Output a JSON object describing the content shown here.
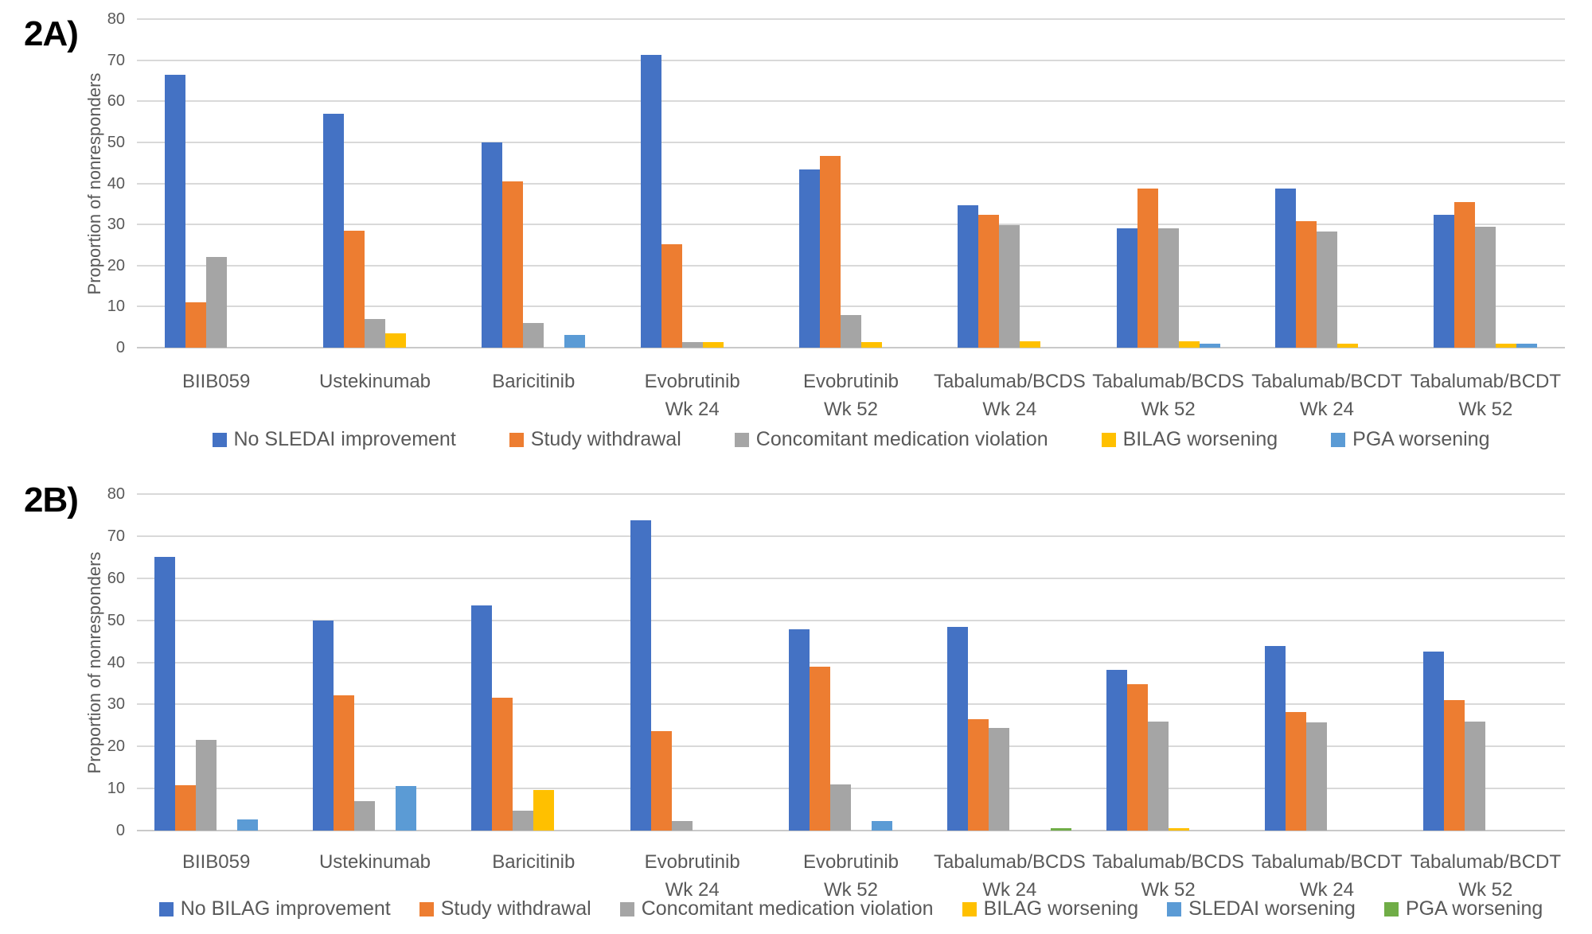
{
  "style": {
    "background": "#FFFFFF",
    "text_color": "#595959",
    "panel_label_color": "#000000",
    "gridline_color": "#D9D9D9",
    "axis_line_color": "#C9C9C9",
    "series_colors": {
      "blue": "#4472C4",
      "orange": "#ED7D31",
      "gray": "#A5A5A5",
      "yellow": "#FFC000",
      "light_blue": "#5B9BD5",
      "green": "#70AD47"
    }
  },
  "chart_data": [
    {
      "panel_label": "2A)",
      "type": "bar",
      "ylabel": "Proportion of nonresponders",
      "ylim": [
        0,
        80
      ],
      "ytick_step": 10,
      "grid": true,
      "legend_position": "bottom",
      "categories": [
        {
          "line1": "BIIB059",
          "line2": ""
        },
        {
          "line1": "Ustekinumab",
          "line2": ""
        },
        {
          "line1": "Baricitinib",
          "line2": ""
        },
        {
          "line1": "Evobrutinib",
          "line2": "Wk 24"
        },
        {
          "line1": "Evobrutinib",
          "line2": "Wk 52"
        },
        {
          "line1": "Tabalumab/BCDS",
          "line2": "Wk 24"
        },
        {
          "line1": "Tabalumab/BCDS",
          "line2": "Wk 52"
        },
        {
          "line1": "Tabalumab/BCDT",
          "line2": "Wk 24"
        },
        {
          "line1": "Tabalumab/BCDT",
          "line2": "Wk 52"
        }
      ],
      "series": [
        {
          "name": "No SLEDAI improvement",
          "color": "#4472C4",
          "values": [
            66.5,
            57.0,
            50.0,
            71.3,
            43.3,
            34.6,
            29.0,
            38.8,
            32.3
          ]
        },
        {
          "name": "Study withdrawal",
          "color": "#ED7D31",
          "values": [
            11.0,
            28.4,
            40.5,
            25.2,
            46.6,
            32.4,
            38.8,
            30.8,
            35.5
          ]
        },
        {
          "name": "Concomitant medication violation",
          "color": "#A5A5A5",
          "values": [
            22.0,
            7.0,
            6.1,
            1.4,
            7.9,
            29.8,
            29.0,
            28.2,
            29.5
          ]
        },
        {
          "name": "BILAG worsening",
          "color": "#FFC000",
          "values": [
            0,
            3.5,
            0,
            1.4,
            1.4,
            1.5,
            1.5,
            0.9,
            0.9
          ]
        },
        {
          "name": "PGA worsening",
          "color": "#5B9BD5",
          "values": [
            0,
            0,
            3.1,
            0,
            0,
            0,
            0.9,
            0,
            0.9
          ]
        }
      ]
    },
    {
      "panel_label": "2B)",
      "type": "bar",
      "ylabel": "Proportion of nonresponders",
      "ylim": [
        0,
        80
      ],
      "ytick_step": 10,
      "grid": true,
      "legend_position": "bottom",
      "categories": [
        {
          "line1": "BIIB059",
          "line2": ""
        },
        {
          "line1": "Ustekinumab",
          "line2": ""
        },
        {
          "line1": "Baricitinib",
          "line2": ""
        },
        {
          "line1": "Evobrutinib",
          "line2": "Wk 24"
        },
        {
          "line1": "Evobrutinib",
          "line2": "Wk 52"
        },
        {
          "line1": "Tabalumab/BCDS",
          "line2": "Wk 24"
        },
        {
          "line1": "Tabalumab/BCDS",
          "line2": "Wk 52"
        },
        {
          "line1": "Tabalumab/BCDT",
          "line2": "Wk 24"
        },
        {
          "line1": "Tabalumab/BCDT",
          "line2": "Wk 52"
        }
      ],
      "series": [
        {
          "name": "No BILAG improvement",
          "color": "#4472C4",
          "values": [
            65.0,
            50.0,
            53.5,
            73.8,
            47.8,
            48.5,
            38.2,
            43.8,
            42.5
          ]
        },
        {
          "name": "Study withdrawal",
          "color": "#ED7D31",
          "values": [
            10.8,
            32.2,
            31.6,
            23.7,
            39.0,
            26.5,
            34.8,
            28.2,
            31.0
          ]
        },
        {
          "name": "Concomitant medication violation",
          "color": "#A5A5A5",
          "values": [
            21.5,
            7.0,
            4.8,
            2.2,
            11.0,
            24.4,
            26.0,
            25.8,
            26.0
          ]
        },
        {
          "name": "BILAG worsening",
          "color": "#FFC000",
          "values": [
            0,
            0,
            9.7,
            0,
            0,
            0,
            0.6,
            0,
            0
          ]
        },
        {
          "name": "SLEDAI worsening",
          "color": "#5B9BD5",
          "values": [
            2.6,
            10.5,
            0,
            0,
            2.3,
            0,
            0,
            0,
            0
          ]
        },
        {
          "name": "PGA worsening",
          "color": "#70AD47",
          "values": [
            0,
            0,
            0,
            0,
            0,
            0.5,
            0,
            0,
            0
          ]
        }
      ]
    }
  ]
}
